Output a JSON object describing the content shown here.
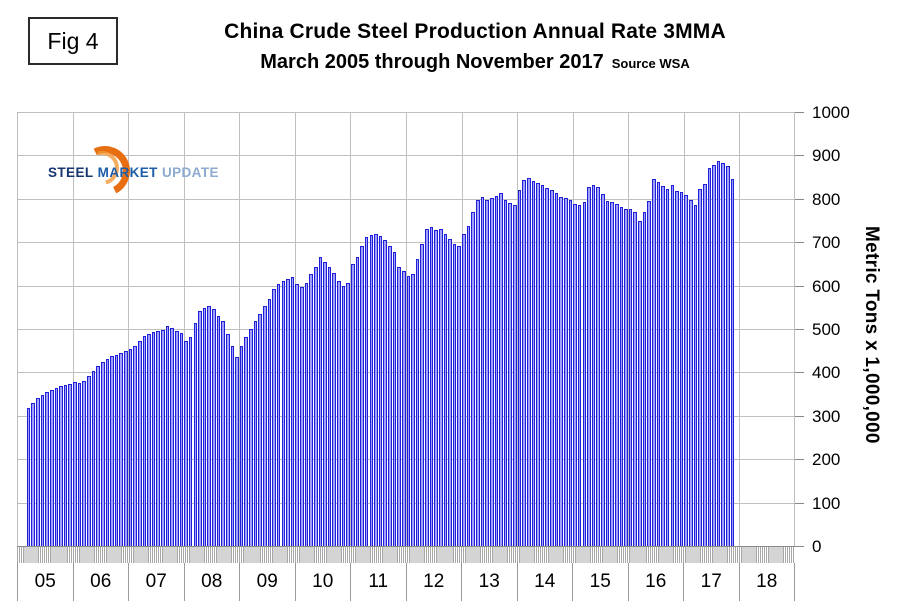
{
  "figure_label": "Fig 4",
  "header": {
    "title_line1": "China Crude Steel Production Annual Rate 3MMA",
    "title_line2": "March 2005 through November 2017",
    "source": "Source WSA"
  },
  "logo": {
    "steel": "STEEL",
    "market": "MARKET",
    "update": "UPDATE",
    "arc_color": "#e76f12"
  },
  "chart_data": {
    "type": "bar",
    "title": "China Crude Steel Production Annual Rate 3MMA",
    "subtitle": "March 2005 through November 2017",
    "source": "Source WSA",
    "ylabel": "Metric Tons x 1,000,000",
    "ylim": [
      0,
      1000
    ],
    "ytick_step": 100,
    "ytick_labels": [
      "0",
      "100",
      "200",
      "300",
      "400",
      "500",
      "600",
      "700",
      "800",
      "900",
      "1000"
    ],
    "x_years": [
      "05",
      "06",
      "07",
      "08",
      "09",
      "10",
      "11",
      "12",
      "13",
      "14",
      "15",
      "16",
      "17",
      "18"
    ],
    "axis_start": "2005-01",
    "axis_end": "2018-12",
    "first_bar": "2005-03",
    "last_bar": "2017-11",
    "grid": true,
    "legend": "none",
    "bar_fill": "#a0a0fa",
    "bar_border": "#2020d8",
    "monthly_values": {
      "2005": [
        null,
        null,
        318,
        330,
        341,
        349,
        354,
        360,
        364,
        368,
        371,
        374
      ],
      "2006": [
        378,
        376,
        381,
        392,
        404,
        415,
        425,
        432,
        438,
        441,
        445,
        450
      ],
      "2007": [
        455,
        461,
        472,
        483,
        489,
        494,
        496,
        498,
        508,
        503,
        495,
        491
      ],
      "2008": [
        472,
        481,
        515,
        542,
        549,
        553,
        546,
        530,
        519,
        488,
        461,
        436
      ],
      "2009": [
        461,
        481,
        499,
        519,
        534,
        553,
        569,
        592,
        603,
        611,
        615,
        619
      ],
      "2010": [
        603,
        596,
        607,
        627,
        642,
        665,
        654,
        642,
        630,
        611,
        600,
        607
      ],
      "2011": [
        650,
        665,
        692,
        711,
        717,
        719,
        715,
        704,
        692,
        677,
        642,
        634
      ],
      "2012": [
        623,
        627,
        661,
        696,
        731,
        734,
        727,
        731,
        719,
        708,
        696,
        692
      ],
      "2013": [
        720,
        737,
        770,
        798,
        805,
        797,
        801,
        806,
        813,
        797,
        790,
        786
      ],
      "2014": [
        820,
        843,
        847,
        841,
        836,
        831,
        826,
        821,
        813,
        805,
        801,
        797
      ],
      "2015": [
        789,
        785,
        793,
        827,
        831,
        827,
        812,
        796,
        793,
        789,
        781,
        777
      ],
      "2016": [
        777,
        769,
        750,
        769,
        796,
        846,
        839,
        829,
        823,
        831,
        819,
        815
      ],
      "2017": [
        808,
        798,
        786,
        822,
        833,
        870,
        877,
        888,
        883,
        876,
        846,
        null
      ]
    }
  }
}
